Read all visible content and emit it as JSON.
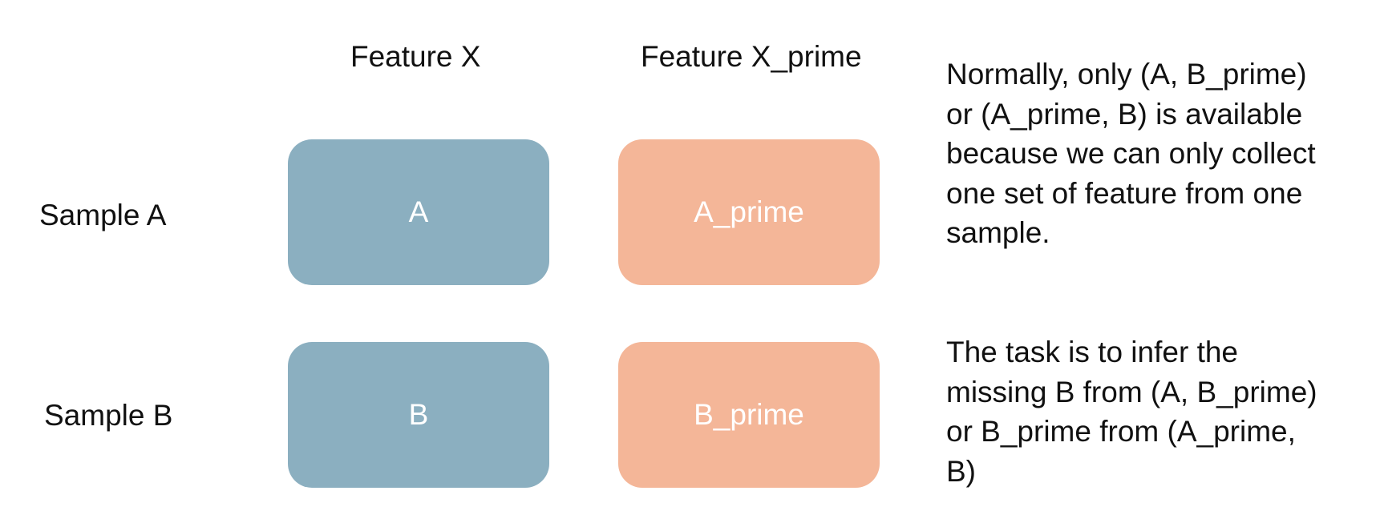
{
  "columns": {
    "feature_x": "Feature X",
    "feature_x_prime": "Feature X_prime"
  },
  "rows": {
    "sample_a": "Sample A",
    "sample_b": "Sample B"
  },
  "cells": {
    "a": "A",
    "a_prime": "A_prime",
    "b": "B",
    "b_prime": "B_prime"
  },
  "notes": {
    "availability": "Normally, only (A, B_prime) or (A_prime, B) is available because we can only collect one set of feature from one sample.",
    "task": "The task is to infer the missing B from (A, B_prime) or B_prime from (A_prime, B)"
  },
  "colors": {
    "feature_x_box": "#8bafc0",
    "feature_x_prime_box": "#f4b698",
    "box_text": "#ffffff"
  }
}
